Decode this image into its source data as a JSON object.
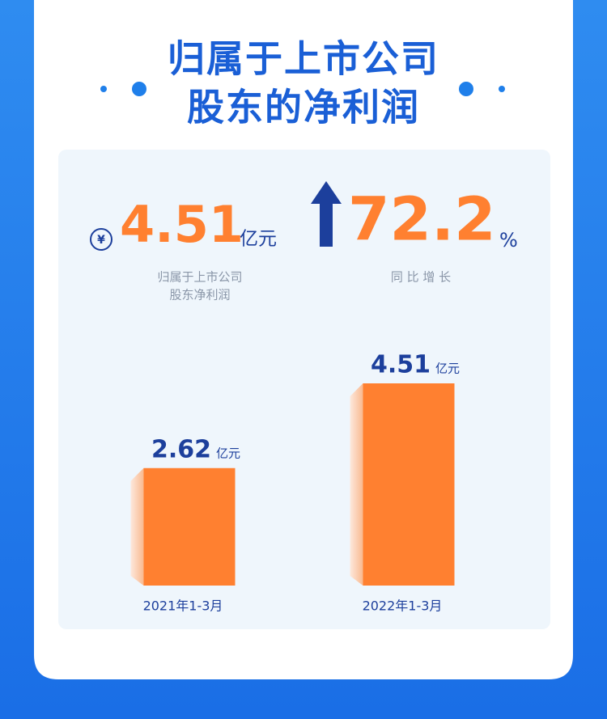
{
  "header": {
    "title_lines": [
      "归属于上市公司",
      "股东的净利润"
    ]
  },
  "summary": {
    "currency_symbol": "¥",
    "profit": 4.51,
    "profit_unit": "亿元",
    "profit_label_lines": [
      "归属于上市公司",
      "股东净利润"
    ],
    "growth": 72.2,
    "growth_unit": "%",
    "growth_label": "同 比 增 长"
  },
  "chart_data": {
    "type": "bar",
    "categories": [
      "2021年1-3月",
      "2022年1-3月"
    ],
    "values": [
      2.62,
      4.51
    ],
    "unit": "亿元",
    "color": "#ff8030"
  }
}
